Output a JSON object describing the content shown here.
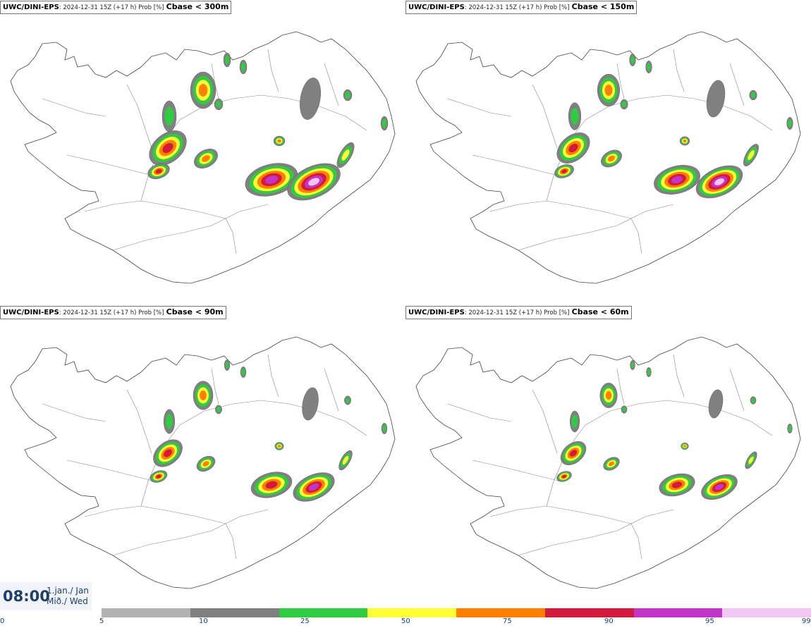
{
  "panels": [
    {
      "model": "UWC/DINI-EPS",
      "meta": ": 2024-12-31 15Z (+17 h) Prob [%]",
      "threshold": "Cbase < 300m"
    },
    {
      "model": "UWC/DINI-EPS",
      "meta": ": 2024-12-31 15Z (+17 h) Prob [%]",
      "threshold": "Cbase < 150m"
    },
    {
      "model": "UWC/DINI-EPS",
      "meta": ": 2024-12-31 15Z (+17 h) Prob [%]",
      "threshold": "Cbase < 90m"
    },
    {
      "model": "UWC/DINI-EPS",
      "meta": ": 2024-12-31 15Z (+17 h) Prob [%]",
      "threshold": "Cbase < 60m"
    }
  ],
  "valid_time": {
    "time": "08:00",
    "date_line1": "1.jan./ Jan",
    "date_line2": "Mið./ Wed"
  },
  "legend": {
    "tick_labels": [
      "0",
      "5",
      "10",
      "25",
      "50",
      "75",
      "90",
      "95",
      "99"
    ],
    "colors": [
      "#b2b2b2",
      "#808080",
      "#2ecc40",
      "#ffff33",
      "#ff7f00",
      "#d41a3c",
      "#c235c8",
      "#f2c6f2"
    ]
  }
}
